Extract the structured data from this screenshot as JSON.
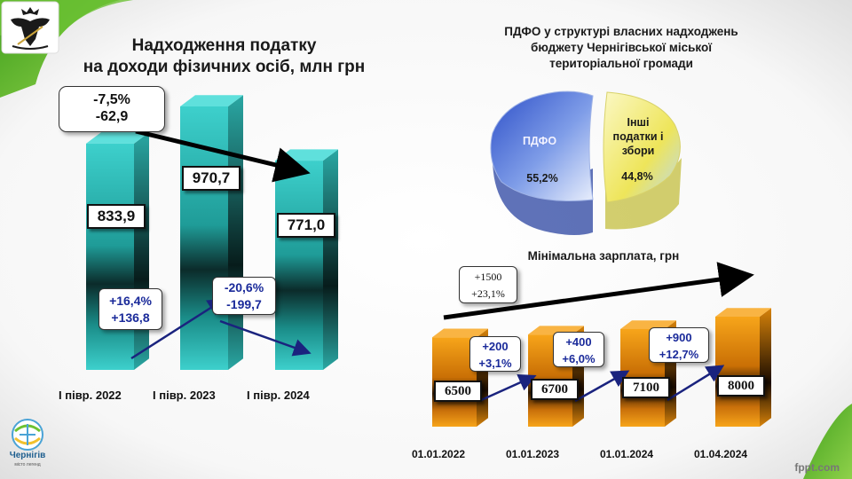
{
  "colors": {
    "bar_teal": "#2fc7c3",
    "bar_orange": "#f39a10",
    "pie_blue": "#3b5fd0",
    "pie_yellow": "#f5ef7a",
    "arrow_black": "#000000",
    "arrow_navy": "#1a237e",
    "callout_blue_text": "#1a2a9a",
    "green_accent": "#5fb82c"
  },
  "logos": {
    "emblem": "eagle-coat-of-arms",
    "city_logo_text": "Чернігів",
    "city_logo_sub": "місто легенд"
  },
  "watermark": "fppt.com",
  "chart_data": [
    {
      "type": "bar",
      "title": "Надходження податку на доходи фізичних осіб, млн грн",
      "title_lines": [
        "Надходження податку",
        "на доходи фізичних осіб, млн грн"
      ],
      "categories": [
        "І півр. 2022",
        "І півр. 2023",
        "І півр. 2024"
      ],
      "values": [
        833.9,
        970.7,
        771.0
      ],
      "value_labels": [
        "833,9",
        "970,7",
        "771,0"
      ],
      "ylim": [
        0,
        1000
      ],
      "grid": false,
      "annotations": [
        {
          "from": "І півр. 2022",
          "to": "І півр. 2023",
          "lines": [
            "+16,4%",
            "+136,8"
          ]
        },
        {
          "from": "І півр. 2023",
          "to": "І півр. 2024",
          "lines": [
            "-20,6%",
            "-199,7"
          ]
        },
        {
          "from": "І півр. 2022",
          "to": "І півр. 2024",
          "lines": [
            "-7,5%",
            "-62,9"
          ]
        }
      ]
    },
    {
      "type": "pie",
      "title": "ПДФО у структурі власних надходжень бюджету Чернігівської міської територіальної громади",
      "title_lines": [
        "ПДФО у структурі власних надходжень",
        "бюджету Чернігівської міської",
        "територіальної громади"
      ],
      "slices": [
        {
          "label": "ПДФО",
          "value": 55.2,
          "value_label": "55,2%"
        },
        {
          "label": "Інші податки і збори",
          "label_lines": [
            "Інші",
            "податки і",
            "збори"
          ],
          "value": 44.8,
          "value_label": "44,8%"
        }
      ]
    },
    {
      "type": "bar",
      "title": "Мінімальна зарплата, грн",
      "categories": [
        "01.01.2022",
        "01.01.2023",
        "01.01.2024",
        "01.04.2024"
      ],
      "values": [
        6500,
        6700,
        7100,
        8000
      ],
      "value_labels": [
        "6500",
        "6700",
        "7100",
        "8000"
      ],
      "ylim": [
        0,
        8000
      ],
      "grid": false,
      "annotations": [
        {
          "from": "01.01.2022",
          "to": "01.01.2023",
          "lines": [
            "+200",
            "+3,1%"
          ]
        },
        {
          "from": "01.01.2023",
          "to": "01.01.2024",
          "lines": [
            "+400",
            "+6,0%"
          ]
        },
        {
          "from": "01.01.2024",
          "to": "01.04.2024",
          "lines": [
            "+900",
            "+12,7%"
          ]
        },
        {
          "from": "01.01.2022",
          "to": "01.04.2024",
          "lines": [
            "+1500",
            "+23,1%"
          ]
        }
      ]
    }
  ]
}
